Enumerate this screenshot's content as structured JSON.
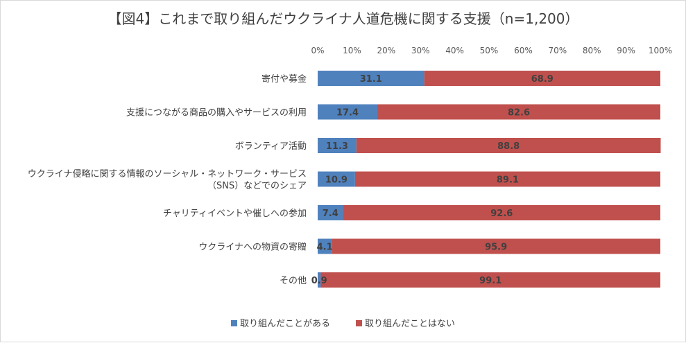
{
  "chart_data": {
    "type": "bar",
    "orientation": "horizontal",
    "stacked": "percent",
    "title": "【図4】これまで取り組んだウクライナ人道危機に関する支援（n=1,200）",
    "categories": [
      [
        "寄付や募金"
      ],
      [
        "支援につながる商品の購入やサービスの利用"
      ],
      [
        "ボランティア活動"
      ],
      [
        "ウクライナ侵略に関する情報のソーシャル・ネットワーク・サービス",
        "（SNS）などでのシェア"
      ],
      [
        "チャリティイベントや催しへの参加"
      ],
      [
        "ウクライナへの物資の寄贈"
      ],
      [
        "その他"
      ]
    ],
    "series": [
      {
        "name": "取り組んだことがある",
        "color": "#4f81bd",
        "values": [
          31.1,
          17.4,
          11.3,
          10.9,
          7.4,
          4.1,
          0.9
        ]
      },
      {
        "name": "取り組んだことはない",
        "color": "#c0504d",
        "values": [
          68.9,
          82.6,
          88.8,
          89.1,
          92.6,
          95.9,
          99.1
        ]
      }
    ],
    "xlim": [
      0,
      100
    ],
    "xticks": [
      "0%",
      "10%",
      "20%",
      "30%",
      "40%",
      "50%",
      "60%",
      "70%",
      "80%",
      "90%",
      "100%"
    ],
    "xaxis_position": "top",
    "grid": false,
    "legend_position": "bottom"
  }
}
